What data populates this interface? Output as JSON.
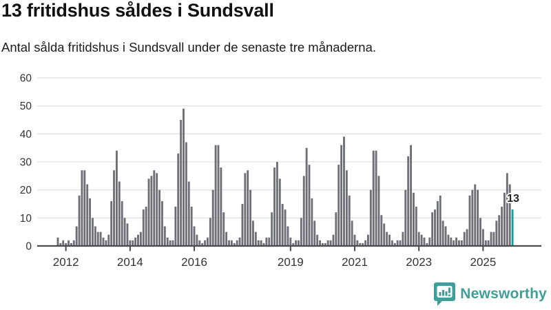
{
  "header": {
    "title": "13 fritidshus såldes i Sundsvall",
    "subtitle": "Antal sålda fritidshus i Sundsvall under de senaste tre månaderna."
  },
  "footer": {
    "brand": "Newsworthy",
    "brand_color": "#3f9e98",
    "logo_icon": "bar-chart-speech-bubble-icon"
  },
  "chart_data": {
    "type": "bar",
    "title": "13 fritidshus såldes i Sundsvall",
    "subtitle": "Antal sålda fritidshus i Sundsvall under de senaste tre månaderna.",
    "ylabel": "",
    "xlabel": "",
    "ylim": [
      0,
      60
    ],
    "yticks": [
      0,
      10,
      20,
      30,
      40,
      50,
      60
    ],
    "grid": true,
    "x_ticks": [
      {
        "label": "2012",
        "index": 3
      },
      {
        "label": "2014",
        "index": 27
      },
      {
        "label": "2016",
        "index": 51
      },
      {
        "label": "2019",
        "index": 87
      },
      {
        "label": "2021",
        "index": 111
      },
      {
        "label": "2023",
        "index": 135
      },
      {
        "label": "2025",
        "index": 159
      }
    ],
    "values": [
      3,
      1,
      2,
      1,
      2,
      1,
      2,
      7,
      18,
      27,
      27,
      22,
      17,
      10,
      7,
      5,
      5,
      3,
      2,
      4,
      16,
      27,
      34,
      23,
      16,
      10,
      8,
      2,
      2,
      3,
      4,
      5,
      13,
      14,
      24,
      25,
      27,
      26,
      20,
      16,
      7,
      3,
      2,
      2,
      14,
      33,
      45,
      49,
      37,
      23,
      14,
      7,
      4,
      2,
      1,
      2,
      3,
      10,
      20,
      36,
      36,
      28,
      12,
      5,
      2,
      2,
      1,
      2,
      3,
      15,
      26,
      27,
      20,
      9,
      5,
      2,
      2,
      1,
      3,
      3,
      12,
      28,
      30,
      24,
      15,
      13,
      7,
      3,
      1,
      2,
      2,
      10,
      25,
      35,
      29,
      17,
      9,
      4,
      2,
      1,
      1,
      2,
      2,
      4,
      12,
      29,
      36,
      39,
      27,
      18,
      9,
      4,
      2,
      1,
      1,
      2,
      4,
      20,
      34,
      34,
      25,
      11,
      8,
      5,
      4,
      2,
      1,
      2,
      2,
      5,
      20,
      32,
      36,
      19,
      14,
      5,
      4,
      3,
      1,
      3,
      12,
      13,
      16,
      18,
      9,
      7,
      4,
      3,
      2,
      3,
      2,
      2,
      5,
      6,
      18,
      20,
      22,
      20,
      10,
      6,
      2,
      2,
      5,
      5,
      9,
      11,
      14,
      19,
      26,
      22,
      13
    ],
    "highlight": {
      "index": 170,
      "value": 13,
      "label": "13",
      "color": "#0aa2a2"
    },
    "bar_color": "#6e6e76",
    "grid_color": "#e2e2e2",
    "axis_color": "#4a4a4a",
    "tick_label_color": "#333333",
    "annotation_color": "#222222"
  }
}
